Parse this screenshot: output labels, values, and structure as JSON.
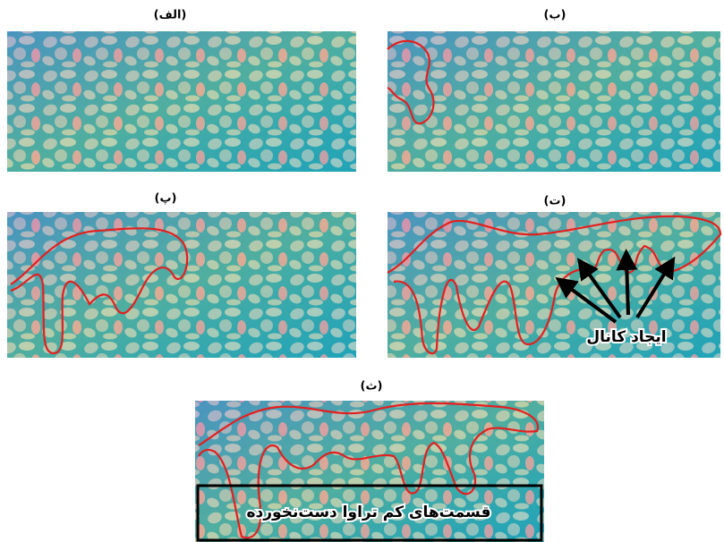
{
  "panels": [
    {
      "label": "(الف)"
    },
    {
      "label": "(ب)"
    },
    {
      "label": "(پ)"
    },
    {
      "label": "(ت)",
      "annotation": "ایجاد کانال"
    },
    {
      "label": "(ث)",
      "annotation": "قسمت‌های کم تراوا دست‌نخورده"
    }
  ]
}
